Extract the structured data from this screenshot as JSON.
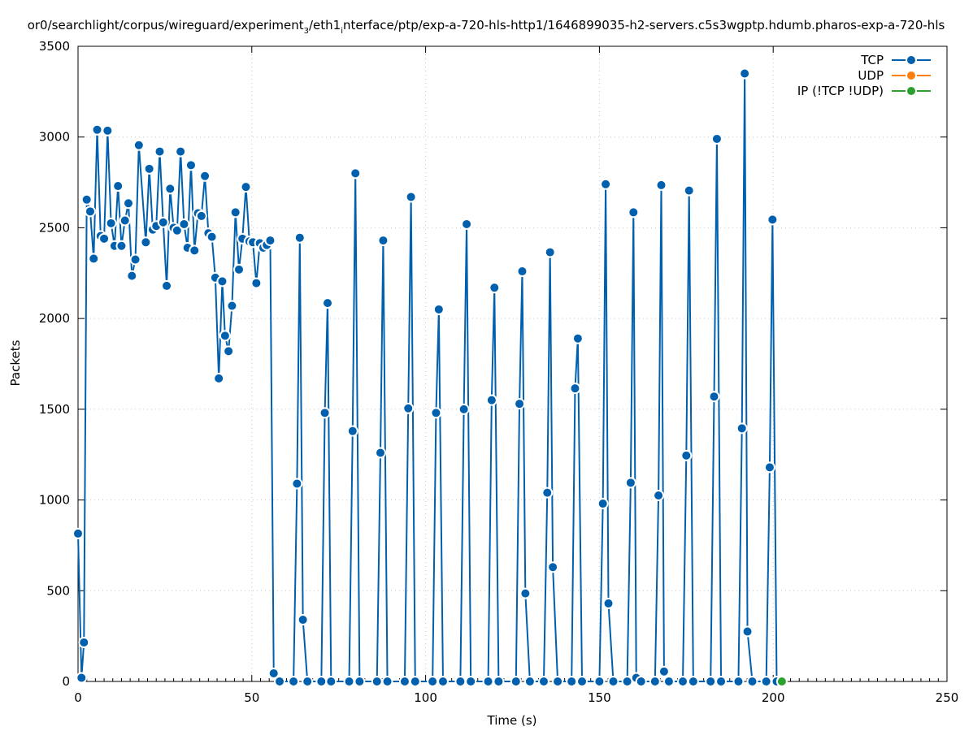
{
  "chart_data": {
    "type": "line",
    "title": "or0/searchlight/corpus/wireguard/experiment",
    "title_sub": "3",
    "title_rest": "/eth1",
    "title_sub2": "i",
    "title_end": "nterface/ptp/exp-a-720-hls-http1/1646899035-h2-servers.c5s3wgptp.hdumb.pharos-exp-a-720-hls",
    "xlabel": "Time (s)",
    "ylabel": "Packets",
    "xlim": [
      0,
      250
    ],
    "ylim": [
      0,
      3500
    ],
    "x_ticks": [
      "0",
      "50",
      "100",
      "150",
      "200",
      "250"
    ],
    "y_ticks": [
      "0",
      "500",
      "1000",
      "1500",
      "2000",
      "2500",
      "3000",
      "3500"
    ],
    "grid": true,
    "legend_position": "top-right",
    "series": [
      {
        "name": "TCP",
        "color": "#0060ad",
        "points": [
          [
            0,
            815
          ],
          [
            1,
            20
          ],
          [
            1.7,
            215
          ],
          [
            2.5,
            2655
          ],
          [
            3.5,
            2590
          ],
          [
            4.5,
            2330
          ],
          [
            5.5,
            3040
          ],
          [
            6.5,
            2455
          ],
          [
            7.5,
            2440
          ],
          [
            8.5,
            3035
          ],
          [
            9.5,
            2525
          ],
          [
            10.5,
            2400
          ],
          [
            11.5,
            2730
          ],
          [
            12.5,
            2400
          ],
          [
            13.5,
            2540
          ],
          [
            14.5,
            2635
          ],
          [
            15.5,
            2235
          ],
          [
            16.5,
            2325
          ],
          [
            17.5,
            2955
          ],
          [
            19.5,
            2420
          ],
          [
            20.5,
            2825
          ],
          [
            21.5,
            2490
          ],
          [
            22.5,
            2510
          ],
          [
            23.5,
            2920
          ],
          [
            24.5,
            2530
          ],
          [
            25.5,
            2180
          ],
          [
            26.5,
            2715
          ],
          [
            27.5,
            2500
          ],
          [
            28.5,
            2485
          ],
          [
            29.5,
            2920
          ],
          [
            30.5,
            2520
          ],
          [
            31.5,
            2390
          ],
          [
            32.5,
            2845
          ],
          [
            33.5,
            2375
          ],
          [
            34.5,
            2580
          ],
          [
            35.5,
            2565
          ],
          [
            36.5,
            2785
          ],
          [
            37.5,
            2470
          ],
          [
            38.5,
            2450
          ],
          [
            39.5,
            2225
          ],
          [
            40.5,
            1670
          ],
          [
            41.5,
            2205
          ],
          [
            42.3,
            1905
          ],
          [
            43.3,
            1820
          ],
          [
            44.3,
            2070
          ],
          [
            45.3,
            2585
          ],
          [
            46.3,
            2270
          ],
          [
            47.3,
            2440
          ],
          [
            48.3,
            2725
          ],
          [
            49.3,
            2425
          ],
          [
            50.3,
            2420
          ],
          [
            51.3,
            2195
          ],
          [
            52.3,
            2415
          ],
          [
            53.3,
            2390
          ],
          [
            54.3,
            2405
          ],
          [
            55.3,
            2430
          ],
          [
            56.3,
            45
          ],
          [
            58,
            0
          ],
          [
            62,
            0
          ],
          [
            63,
            1090
          ],
          [
            63.8,
            2445
          ],
          [
            64.7,
            340
          ],
          [
            66,
            0
          ],
          [
            70,
            0
          ],
          [
            71,
            1480
          ],
          [
            71.8,
            2085
          ],
          [
            72.8,
            0
          ],
          [
            78,
            0
          ],
          [
            79,
            1380
          ],
          [
            79.8,
            2800
          ],
          [
            81,
            0
          ],
          [
            86,
            0
          ],
          [
            87,
            1260
          ],
          [
            87.8,
            2430
          ],
          [
            89,
            0
          ],
          [
            94,
            0
          ],
          [
            95,
            1505
          ],
          [
            95.8,
            2670
          ],
          [
            97,
            0
          ],
          [
            102,
            0
          ],
          [
            103,
            1480
          ],
          [
            103.8,
            2050
          ],
          [
            105,
            0
          ],
          [
            110,
            0
          ],
          [
            111,
            1500
          ],
          [
            111.8,
            2520
          ],
          [
            113,
            0
          ],
          [
            118,
            0
          ],
          [
            119,
            1550
          ],
          [
            119.8,
            2170
          ],
          [
            121,
            0
          ],
          [
            126,
            0
          ],
          [
            127,
            1530
          ],
          [
            127.8,
            2260
          ],
          [
            128.7,
            485
          ],
          [
            130,
            0
          ],
          [
            134,
            0
          ],
          [
            135,
            1040
          ],
          [
            135.8,
            2365
          ],
          [
            136.6,
            630
          ],
          [
            138,
            0
          ],
          [
            142,
            0
          ],
          [
            143,
            1615
          ],
          [
            143.8,
            1890
          ],
          [
            145,
            0
          ],
          [
            150,
            0
          ],
          [
            151,
            980
          ],
          [
            151.8,
            2740
          ],
          [
            152.6,
            430
          ],
          [
            154,
            0
          ],
          [
            158,
            0
          ],
          [
            159,
            1095
          ],
          [
            159.8,
            2585
          ],
          [
            160.6,
            20
          ],
          [
            162,
            0
          ],
          [
            166,
            0
          ],
          [
            167,
            1025
          ],
          [
            167.8,
            2735
          ],
          [
            168.6,
            55
          ],
          [
            170,
            0
          ],
          [
            174,
            0
          ],
          [
            175,
            1245
          ],
          [
            175.8,
            2705
          ],
          [
            177,
            0
          ],
          [
            182,
            0
          ],
          [
            183,
            1570
          ],
          [
            183.8,
            2990
          ],
          [
            185,
            0
          ],
          [
            190,
            0
          ],
          [
            191,
            1395
          ],
          [
            191.8,
            3350
          ],
          [
            192.6,
            275
          ],
          [
            194,
            0
          ],
          [
            198,
            0
          ],
          [
            199,
            1180
          ],
          [
            199.8,
            2545
          ],
          [
            201,
            0
          ]
        ]
      },
      {
        "name": "UDP",
        "color": "#ff7f0e",
        "points": []
      },
      {
        "name": "IP (!TCP  !UDP)",
        "color": "#2ca02c",
        "points": [
          [
            202.5,
            0
          ]
        ]
      }
    ]
  }
}
